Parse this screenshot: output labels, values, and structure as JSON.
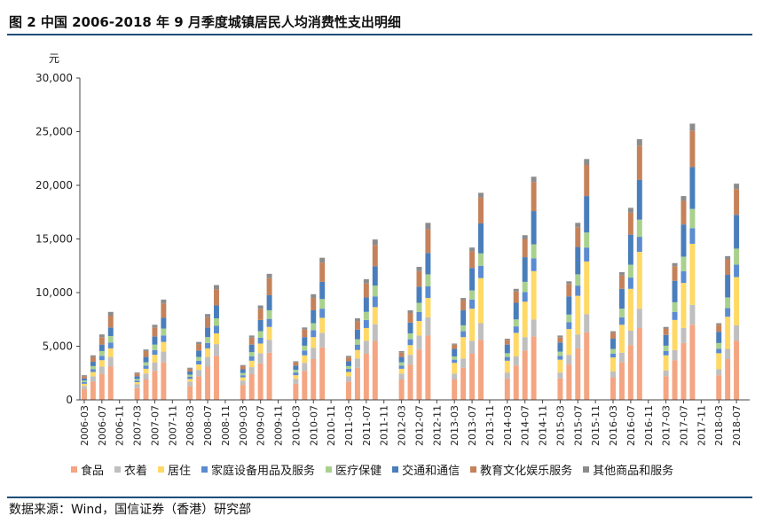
{
  "header": {
    "title": "图 2  中国 2006-2018 年 9 月季度城镇居民人均消费性支出明细"
  },
  "footer": {
    "source": "数据来源：Wind，国信证券（香港）研究部"
  },
  "chart_data": {
    "type": "bar",
    "stacked": true,
    "unit_label": "元",
    "ylim": [
      0,
      30000
    ],
    "yticks": [
      0,
      5000,
      10000,
      15000,
      20000,
      25000,
      30000
    ],
    "ytick_labels": [
      "0",
      "5,000",
      "10,000",
      "15,000",
      "20,000",
      "25,000",
      "30,000"
    ],
    "categories": [
      "2006-03",
      "2006-05",
      "2006-07",
      "2006-09",
      "2006-11",
      "2007-01",
      "2007-03",
      "2007-05",
      "2007-07",
      "2007-09",
      "2007-11",
      "2008-01",
      "2008-03",
      "2008-05",
      "2008-07",
      "2008-09",
      "2008-11",
      "2009-01",
      "2009-03",
      "2009-05",
      "2009-07",
      "2009-09",
      "2009-11",
      "2010-01",
      "2010-03",
      "2010-05",
      "2010-07",
      "2010-09",
      "2010-11",
      "2011-01",
      "2011-03",
      "2011-05",
      "2011-07",
      "2011-09",
      "2011-11",
      "2012-01",
      "2012-03",
      "2012-05",
      "2012-07",
      "2012-09",
      "2012-11",
      "2013-01",
      "2013-03",
      "2013-05",
      "2013-07",
      "2013-09",
      "2013-11",
      "2014-01",
      "2014-03",
      "2014-05",
      "2014-07",
      "2014-09",
      "2014-11",
      "2015-01",
      "2015-03",
      "2015-05",
      "2015-07",
      "2015-09",
      "2015-11",
      "2016-01",
      "2016-03",
      "2016-05",
      "2016-07",
      "2016-09",
      "2016-11",
      "2017-01",
      "2017-03",
      "2017-05",
      "2017-07",
      "2017-09",
      "2017-11",
      "2018-01",
      "2018-03",
      "2018-05",
      "2018-07",
      "2018-09"
    ],
    "x_tick_labels": [
      "2006-03",
      "2006-07",
      "2006-11",
      "2007-03",
      "2007-07",
      "2007-11",
      "2008-03",
      "2008-07",
      "2008-11",
      "2009-03",
      "2009-07",
      "2009-11",
      "2010-03",
      "2010-07",
      "2010-11",
      "2011-03",
      "2011-07",
      "2011-11",
      "2012-03",
      "2012-07",
      "2012-11",
      "2013-03",
      "2013-07",
      "2013-11",
      "2014-03",
      "2014-07",
      "2014-11",
      "2015-03",
      "2015-07",
      "2015-11",
      "2016-03",
      "2016-07",
      "2016-11",
      "2017-03",
      "2017-07",
      "2017-11",
      "2018-03",
      "2018-07"
    ],
    "series": [
      {
        "name": "食品",
        "color": "#F4A582",
        "values": [
          1000,
          1700,
          2400,
          3100,
          null,
          null,
          1100,
          1900,
          2700,
          3500,
          null,
          null,
          1300,
          2200,
          3100,
          4100,
          null,
          null,
          1400,
          2400,
          3400,
          4400,
          null,
          null,
          1500,
          2700,
          3800,
          4900,
          null,
          null,
          1700,
          3000,
          4300,
          5500,
          null,
          null,
          1900,
          3300,
          4700,
          6000,
          null,
          null,
          1900,
          3000,
          4300,
          5600,
          null,
          null,
          2000,
          3200,
          4600,
          5900,
          null,
          null,
          2000,
          3300,
          4800,
          6300,
          null,
          null,
          2100,
          3500,
          5100,
          6700,
          null,
          null,
          2200,
          3700,
          5300,
          7000,
          null,
          null,
          2300,
          3800,
          5500,
          null
        ]
      },
      {
        "name": "衣着",
        "color": "#BFBFBF",
        "values": [
          300,
          500,
          700,
          900,
          null,
          null,
          350,
          550,
          800,
          1000,
          null,
          null,
          400,
          600,
          900,
          1100,
          null,
          null,
          400,
          650,
          950,
          1200,
          null,
          null,
          450,
          750,
          1050,
          1350,
          null,
          null,
          500,
          850,
          1200,
          1550,
          null,
          null,
          550,
          900,
          1300,
          1700,
          null,
          null,
          550,
          850,
          1200,
          1550,
          null,
          null,
          550,
          850,
          1250,
          1600,
          null,
          null,
          550,
          900,
          1300,
          1700,
          null,
          null,
          550,
          900,
          1350,
          1800,
          null,
          null,
          550,
          950,
          1400,
          1850,
          null,
          null,
          550,
          950,
          1450,
          null
        ]
      },
      {
        "name": "居住",
        "color": "#FFD966",
        "values": [
          200,
          400,
          600,
          800,
          null,
          null,
          200,
          450,
          700,
          900,
          null,
          null,
          250,
          500,
          800,
          1000,
          null,
          null,
          300,
          600,
          900,
          1200,
          null,
          null,
          350,
          700,
          1000,
          1400,
          null,
          null,
          400,
          800,
          1200,
          1600,
          null,
          null,
          450,
          900,
          1350,
          1800,
          null,
          null,
          1000,
          2000,
          3000,
          4200,
          null,
          null,
          1100,
          2200,
          3300,
          4500,
          null,
          null,
          1200,
          2400,
          3600,
          4900,
          null,
          null,
          1300,
          2600,
          3900,
          5300,
          null,
          null,
          1400,
          2800,
          4200,
          5700,
          null,
          null,
          1500,
          3000,
          4500,
          null
        ]
      },
      {
        "name": "家庭设备用品及服务",
        "color": "#5B8BD0",
        "values": [
          150,
          250,
          400,
          550,
          null,
          null,
          150,
          300,
          450,
          600,
          null,
          null,
          200,
          350,
          500,
          700,
          null,
          null,
          200,
          400,
          550,
          750,
          null,
          null,
          250,
          450,
          650,
          850,
          null,
          null,
          300,
          500,
          750,
          1000,
          null,
          null,
          300,
          550,
          850,
          1100,
          null,
          null,
          300,
          550,
          850,
          1150,
          null,
          null,
          350,
          600,
          900,
          1200,
          null,
          null,
          350,
          650,
          950,
          1300,
          null,
          null,
          350,
          700,
          1050,
          1400,
          null,
          null,
          400,
          750,
          1100,
          1450,
          null,
          null,
          400,
          800,
          1150,
          null
        ]
      },
      {
        "name": "医疗保健",
        "color": "#A9D18E",
        "values": [
          150,
          300,
          450,
          600,
          null,
          null,
          150,
          300,
          500,
          650,
          null,
          null,
          200,
          350,
          550,
          700,
          null,
          null,
          200,
          400,
          600,
          800,
          null,
          null,
          250,
          450,
          650,
          900,
          null,
          null,
          250,
          500,
          750,
          1000,
          null,
          null,
          300,
          550,
          850,
          1100,
          null,
          null,
          300,
          550,
          850,
          1150,
          null,
          null,
          350,
          650,
          950,
          1300,
          null,
          null,
          400,
          700,
          1050,
          1400,
          null,
          null,
          450,
          800,
          1200,
          1600,
          null,
          null,
          500,
          900,
          1350,
          1800,
          null,
          null,
          550,
          1000,
          1500,
          null
        ]
      },
      {
        "name": "交通和通信",
        "color": "#4A7EBB",
        "values": [
          200,
          400,
          600,
          800,
          null,
          null,
          250,
          500,
          750,
          1000,
          null,
          null,
          300,
          600,
          900,
          1200,
          null,
          null,
          350,
          700,
          1050,
          1400,
          null,
          null,
          400,
          800,
          1200,
          1600,
          null,
          null,
          450,
          900,
          1350,
          1800,
          null,
          null,
          500,
          1000,
          1500,
          2000,
          null,
          null,
          700,
          1400,
          2100,
          2800,
          null,
          null,
          800,
          1550,
          2300,
          3100,
          null,
          null,
          850,
          1700,
          2550,
          3400,
          null,
          null,
          950,
          1850,
          2800,
          3700,
          null,
          null,
          1000,
          2000,
          3000,
          3900,
          null,
          null,
          1050,
          2100,
          3150,
          null
        ]
      },
      {
        "name": "教育文化娱乐服务",
        "color": "#C5825A",
        "values": [
          200,
          450,
          700,
          1100,
          null,
          null,
          250,
          550,
          850,
          1350,
          null,
          null,
          250,
          600,
          950,
          1500,
          null,
          null,
          300,
          650,
          1050,
          1600,
          null,
          null,
          300,
          700,
          1150,
          1800,
          null,
          null,
          350,
          800,
          1300,
          2000,
          null,
          null,
          400,
          900,
          1450,
          2200,
          null,
          null,
          400,
          950,
          1550,
          2400,
          null,
          null,
          450,
          1050,
          1700,
          2700,
          null,
          null,
          500,
          1150,
          1850,
          2900,
          null,
          null,
          550,
          1250,
          2050,
          3200,
          null,
          null,
          600,
          1350,
          2200,
          3400,
          null,
          null,
          650,
          1450,
          2400,
          null
        ]
      },
      {
        "name": "其他商品和服务",
        "color": "#8C8C8C",
        "values": [
          100,
          150,
          250,
          350,
          null,
          null,
          100,
          150,
          250,
          350,
          null,
          null,
          100,
          200,
          300,
          400,
          null,
          null,
          100,
          200,
          300,
          400,
          null,
          null,
          100,
          200,
          350,
          450,
          null,
          null,
          150,
          250,
          400,
          500,
          null,
          null,
          150,
          250,
          400,
          600,
          null,
          null,
          100,
          200,
          350,
          450,
          null,
          null,
          100,
          250,
          350,
          500,
          null,
          null,
          150,
          250,
          400,
          550,
          null,
          null,
          150,
          300,
          450,
          600,
          null,
          null,
          150,
          300,
          450,
          650,
          null,
          null,
          150,
          300,
          500,
          null
        ]
      }
    ]
  }
}
